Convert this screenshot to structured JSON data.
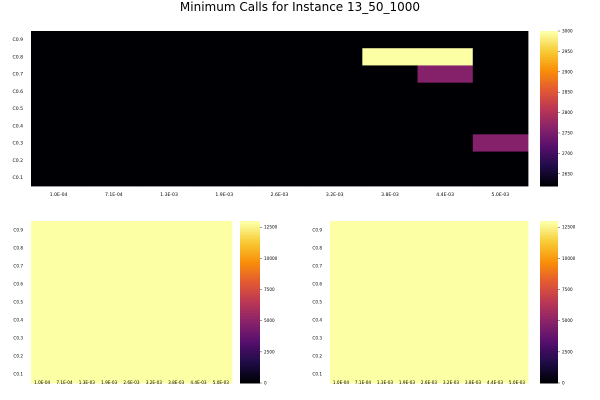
{
  "title": "Minimum Calls for Instance 13_50_1000",
  "colormap": [
    "#000004",
    "#1f0c48",
    "#550f6d",
    "#88226a",
    "#ba3655",
    "#e35933",
    "#f98e09",
    "#f8c932",
    "#fcffa4"
  ],
  "chart_data": [
    {
      "type": "heatmap",
      "name": "top",
      "x_ticks": [
        "1.0E-04",
        "7.1E-04",
        "1.3E-03",
        "1.9E-03",
        "2.6E-03",
        "3.2E-03",
        "3.8E-03",
        "4.4E-03",
        "5.0E-03"
      ],
      "y_ticks": [
        "C0.1",
        "C0.2",
        "C0.3",
        "C0.4",
        "C0.5",
        "C0.6",
        "C0.7",
        "C0.8",
        "C0.9"
      ],
      "cols": 9,
      "rows": 9,
      "clim": [
        2620,
        3000
      ],
      "colorbar_ticks": [
        2650,
        2700,
        2750,
        2800,
        2850,
        2900,
        2950,
        3000
      ],
      "default_value": 2620,
      "cells": [
        {
          "x": "3.8E-03",
          "y": "C0.8",
          "value": 3000
        },
        {
          "x": "4.4E-03",
          "y": "C0.8",
          "value": 3000
        },
        {
          "x": "4.4E-03",
          "y": "C0.7",
          "value": 2760
        },
        {
          "x": "5.0E-03",
          "y": "C0.3",
          "value": 2760
        }
      ]
    },
    {
      "type": "heatmap",
      "name": "bottom-left",
      "x_ticks": [
        "1.0E-04",
        "7.1E-04",
        "1.3E-03",
        "1.9E-03",
        "2.6E-03",
        "3.2E-03",
        "3.8E-03",
        "4.4E-03",
        "5.0E-03"
      ],
      "y_ticks": [
        "C0.1",
        "C0.2",
        "C0.3",
        "C0.4",
        "C0.5",
        "C0.6",
        "C0.7",
        "C0.8",
        "C0.9"
      ],
      "cols": 9,
      "rows": 9,
      "clim": [
        0,
        13000
      ],
      "colorbar_ticks": [
        0,
        2500,
        5000,
        7500,
        10000,
        12500
      ],
      "default_value": 13000,
      "cells": []
    },
    {
      "type": "heatmap",
      "name": "bottom-right",
      "x_ticks": [
        "1.0E-04",
        "7.1E-04",
        "1.3E-03",
        "1.9E-03",
        "2.6E-03",
        "3.2E-03",
        "3.8E-03",
        "4.4E-03",
        "5.0E-03"
      ],
      "y_ticks": [
        "C0.1",
        "C0.2",
        "C0.3",
        "C0.4",
        "C0.5",
        "C0.6",
        "C0.7",
        "C0.8",
        "C0.9"
      ],
      "cols": 9,
      "rows": 9,
      "clim": [
        0,
        13000
      ],
      "colorbar_ticks": [
        0,
        2500,
        5000,
        7500,
        10000,
        12500
      ],
      "default_value": 13000,
      "cells": []
    }
  ]
}
